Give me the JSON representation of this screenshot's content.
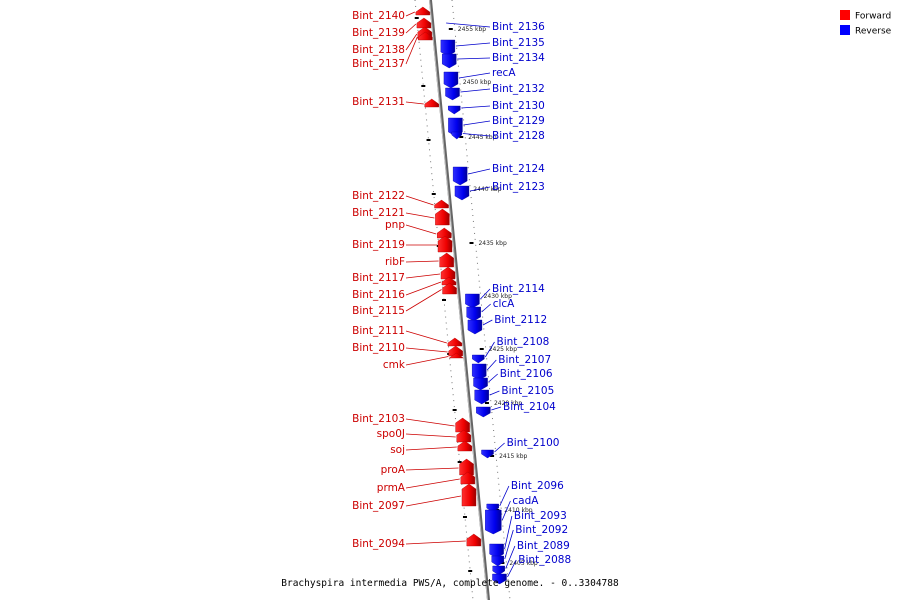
{
  "legend": {
    "forward": {
      "label": "Forward",
      "color": "#ff0000"
    },
    "reverse": {
      "label": "Reverse",
      "color": "#0000ff"
    }
  },
  "caption": "Brachyspira intermedia PWS/A, complete genome. - 0..3304788",
  "scale_ticks": [
    {
      "label": "2455 kbp",
      "kbp": 2455
    },
    {
      "label": "2450 kbp",
      "kbp": 2450
    },
    {
      "label": "2445 kbp",
      "kbp": 2445
    },
    {
      "label": "2440 kbp",
      "kbp": 2440
    },
    {
      "label": "2435 kbp",
      "kbp": 2435
    },
    {
      "label": "2430 kbp",
      "kbp": 2430
    },
    {
      "label": "2425 kbp",
      "kbp": 2425
    },
    {
      "label": "2420 kbp",
      "kbp": 2420
    },
    {
      "label": "2415 kbp",
      "kbp": 2415
    },
    {
      "label": "2410 kbp",
      "kbp": 2410
    },
    {
      "label": "2405 kbp",
      "kbp": 2405
    }
  ],
  "forward_genes": [
    {
      "name": "Bint_2140"
    },
    {
      "name": "Bint_2139"
    },
    {
      "name": "Bint_2138"
    },
    {
      "name": "Bint_2137"
    },
    {
      "name": "Bint_2131"
    },
    {
      "name": "Bint_2122"
    },
    {
      "name": "Bint_2121"
    },
    {
      "name": "pnp"
    },
    {
      "name": "Bint_2119"
    },
    {
      "name": "ribF"
    },
    {
      "name": "Bint_2117"
    },
    {
      "name": "Bint_2116"
    },
    {
      "name": "Bint_2115"
    },
    {
      "name": "Bint_2111"
    },
    {
      "name": "Bint_2110"
    },
    {
      "name": "cmk"
    },
    {
      "name": "Bint_2103"
    },
    {
      "name": "spo0J"
    },
    {
      "name": "soj"
    },
    {
      "name": "proA"
    },
    {
      "name": "prmA"
    },
    {
      "name": "Bint_2097"
    },
    {
      "name": "Bint_2094"
    }
  ],
  "reverse_genes": [
    {
      "name": "Bint_2136"
    },
    {
      "name": "Bint_2135"
    },
    {
      "name": "Bint_2134"
    },
    {
      "name": "recA"
    },
    {
      "name": "Bint_2132"
    },
    {
      "name": "Bint_2130"
    },
    {
      "name": "Bint_2129"
    },
    {
      "name": "Bint_2128"
    },
    {
      "name": "Bint_2124"
    },
    {
      "name": "Bint_2123"
    },
    {
      "name": "Bint_2114"
    },
    {
      "name": "clcA"
    },
    {
      "name": "Bint_2112"
    },
    {
      "name": "Bint_2108"
    },
    {
      "name": "Bint_2107"
    },
    {
      "name": "Bint_2106"
    },
    {
      "name": "Bint_2105"
    },
    {
      "name": "Bint_2104"
    },
    {
      "name": "Bint_2100"
    },
    {
      "name": "Bint_2096"
    },
    {
      "name": "cadA"
    },
    {
      "name": "Bint_2093"
    },
    {
      "name": "Bint_2092"
    },
    {
      "name": "Bint_2089"
    },
    {
      "name": "Bint_2088"
    }
  ]
}
